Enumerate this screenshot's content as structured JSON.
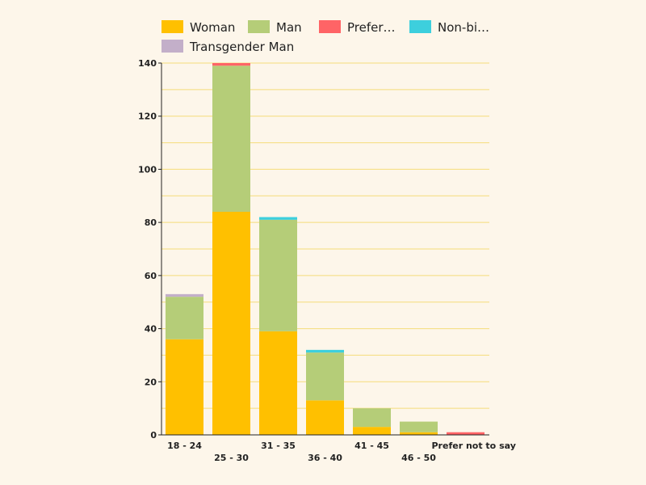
{
  "chart_data": {
    "type": "bar",
    "stacked": true,
    "categories": [
      "18 - 24",
      "25 - 30",
      "31 - 35",
      "36 - 40",
      "41 - 45",
      "46 - 50",
      "Prefer not to say"
    ],
    "series": [
      {
        "name": "Woman",
        "color": "#ffc000",
        "values": [
          36,
          84,
          39,
          13,
          3,
          1,
          0
        ]
      },
      {
        "name": "Man",
        "color": "#b5cd78",
        "values": [
          16,
          55,
          42,
          18,
          7,
          4,
          0
        ]
      },
      {
        "name": "Prefer…",
        "color": "#ff6466",
        "values": [
          0,
          1,
          0,
          0,
          0,
          0,
          1
        ]
      },
      {
        "name": "Non-bi…",
        "color": "#3dcfdd",
        "values": [
          0,
          0,
          1,
          1,
          0,
          0,
          0
        ]
      },
      {
        "name": "Transgender Man",
        "color": "#c3afc9",
        "values": [
          1,
          0,
          0,
          0,
          0,
          0,
          0
        ]
      }
    ],
    "ylim": [
      0,
      140
    ],
    "yticks": [
      "0",
      "20",
      "40",
      "60",
      "80",
      "100",
      "120",
      "140"
    ],
    "grid": true,
    "gridlines": [
      10,
      20,
      30,
      40,
      50,
      60,
      70,
      80,
      90,
      100,
      110,
      120,
      130,
      140
    ],
    "legend_position": "top-left",
    "colors": {
      "grid": "#f5dc7a",
      "axis": "#222222",
      "background": "#fdf6ea"
    }
  }
}
